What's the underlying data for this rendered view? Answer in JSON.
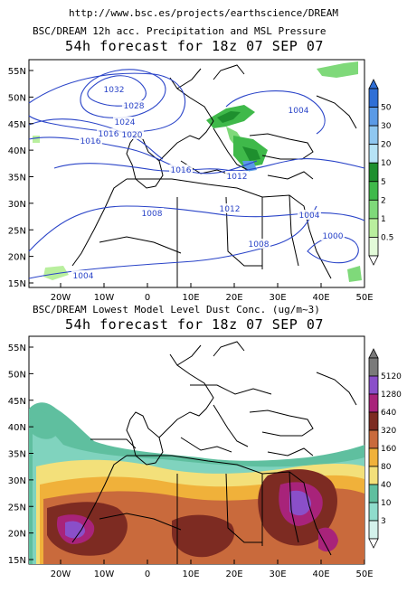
{
  "source_url": "http://www.bsc.es/projects/earthscience/DREAM",
  "maps": [
    {
      "id": "precip",
      "title": "BSC/DREAM 12h acc. Precipitation and MSL Pressure",
      "subtitle": "54h forecast for 18z 07 SEP 07",
      "lat_labels": [
        "55N",
        "50N",
        "45N",
        "40N",
        "35N",
        "30N",
        "25N",
        "20N",
        "15N"
      ],
      "lon_labels": [
        "20W",
        "10W",
        "0",
        "10E",
        "20E",
        "30E",
        "40E",
        "50E"
      ],
      "colorbar_labels": [
        "50",
        "30",
        "20",
        "10",
        "5",
        "2",
        "1",
        "0.5"
      ],
      "colorbar_colors": [
        "#2f6fd6",
        "#5a9ae6",
        "#8fc7f0",
        "#b6e3f6",
        "#1e8f2e",
        "#3fb94a",
        "#7fd97a",
        "#b9ef9e",
        "#e3fbd9"
      ],
      "pressure_labels": [
        "1032",
        "1028",
        "1024",
        "1020",
        "1016",
        "1016",
        "1016",
        "1012",
        "1008",
        "1012",
        "1008",
        "1004",
        "1004",
        "1000",
        "1004"
      ]
    },
    {
      "id": "dust",
      "title": "BSC/DREAM Lowest Model Level Dust Conc. (ug/m~3)",
      "subtitle": "54h forecast for 18z 07 SEP 07",
      "lat_labels": [
        "55N",
        "50N",
        "45N",
        "40N",
        "35N",
        "30N",
        "25N",
        "20N",
        "15N"
      ],
      "lon_labels": [
        "20W",
        "10W",
        "0",
        "10E",
        "20E",
        "30E",
        "40E",
        "50E"
      ],
      "colorbar_labels": [
        "5120",
        "1280",
        "640",
        "320",
        "160",
        "80",
        "40",
        "10",
        "3"
      ],
      "colorbar_colors": [
        "#7a7a7a",
        "#8a4fc9",
        "#a8237a",
        "#7d2b22",
        "#c96a3c",
        "#f0b13a",
        "#f3e07a",
        "#5fbf9f",
        "#8fdccc",
        "#d4f2ec"
      ]
    }
  ]
}
